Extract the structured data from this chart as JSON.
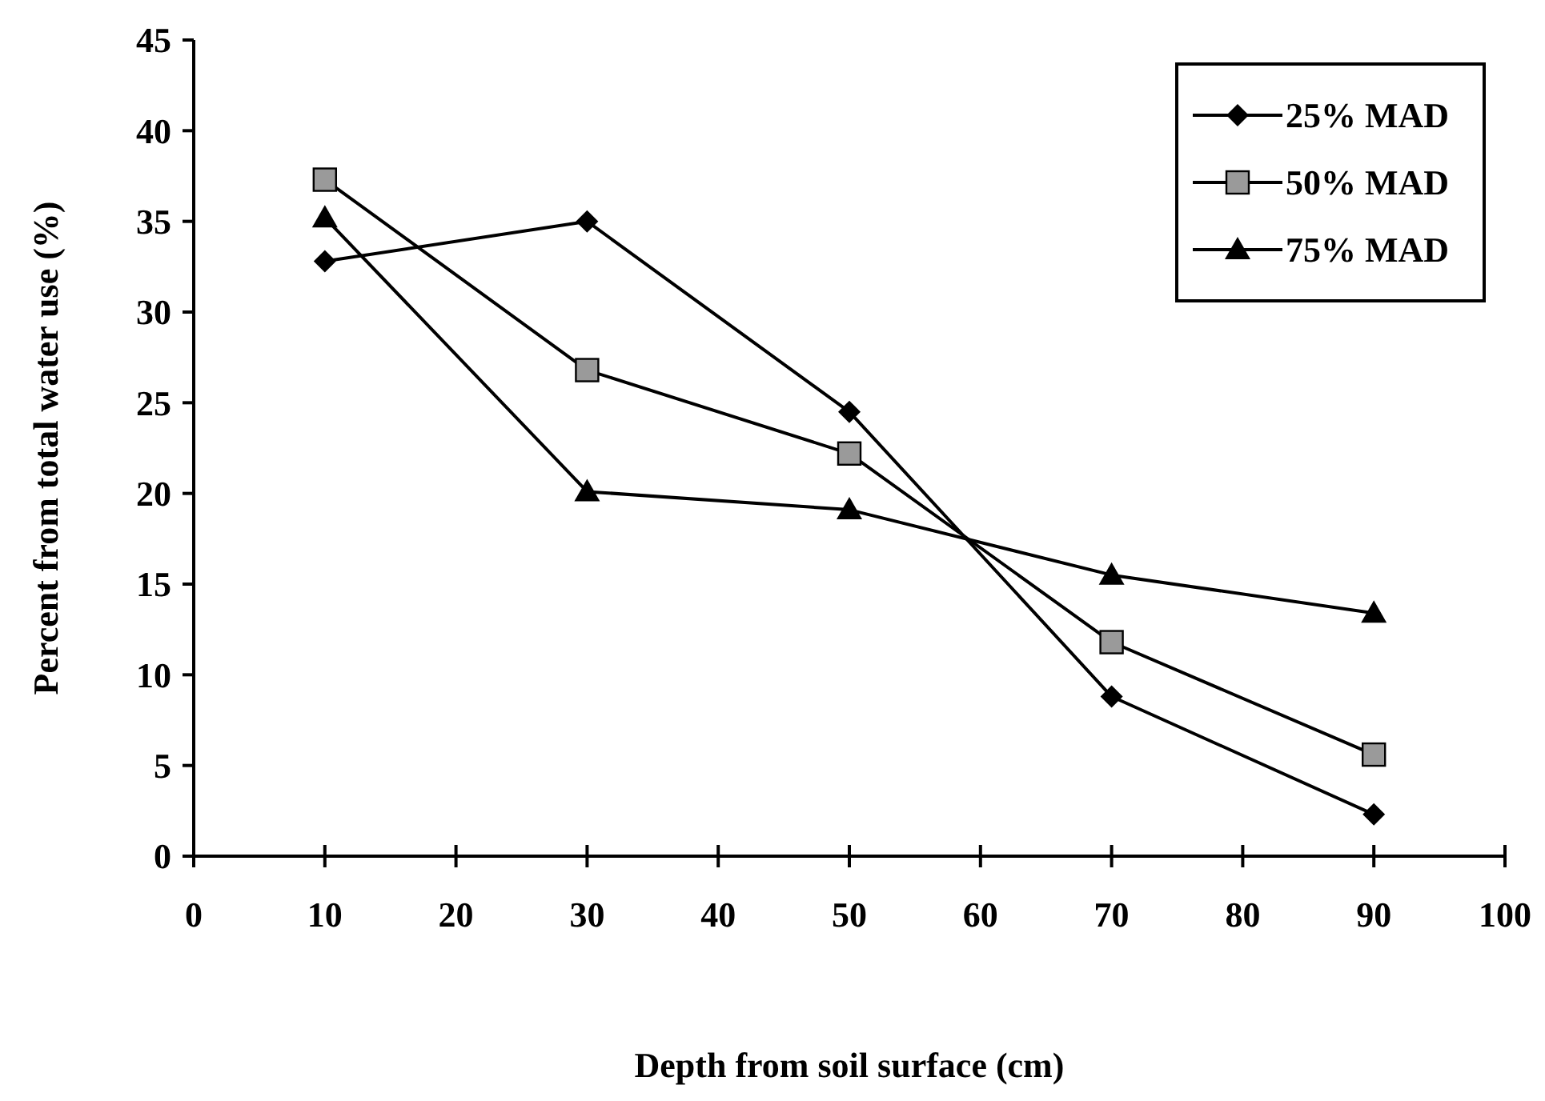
{
  "chart_data": {
    "type": "line",
    "xlabel": "Depth from soil surface (cm)",
    "ylabel": "Percent from total water use (%)",
    "x": [
      10,
      30,
      50,
      70,
      90
    ],
    "xlim": [
      0,
      100
    ],
    "xticks": [
      0,
      10,
      20,
      30,
      40,
      50,
      60,
      70,
      80,
      90,
      100
    ],
    "ylim": [
      0,
      45
    ],
    "yticks": [
      0,
      5,
      10,
      15,
      20,
      25,
      30,
      35,
      40,
      45
    ],
    "legend": "top right",
    "grid": false,
    "series": [
      {
        "name": "25% MAD",
        "color": "#000000",
        "marker": "diamond",
        "values": [
          32.8,
          35.0,
          24.5,
          8.8,
          2.3
        ]
      },
      {
        "name": "50% MAD",
        "color": "#000000",
        "marker": "square",
        "values": [
          37.3,
          26.8,
          22.2,
          11.8,
          5.6
        ]
      },
      {
        "name": "75% MAD",
        "color": "#000000",
        "marker": "triangle",
        "values": [
          35.2,
          20.1,
          19.1,
          15.5,
          13.4
        ]
      }
    ]
  }
}
